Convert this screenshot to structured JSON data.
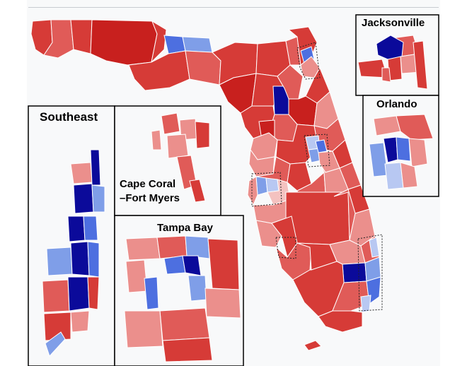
{
  "insets": {
    "jacksonville": "Jacksonville",
    "orlando": "Orlando",
    "southeast": "Southeast",
    "cape_coral_line1": "Cape Coral",
    "cape_coral_line2": "–Fort Myers",
    "tampa_bay": "Tampa Bay"
  },
  "colors": {
    "dark_red": "#c8201e",
    "red": "#d63b37",
    "mid_red": "#e05b58",
    "light_red": "#eb8f8c",
    "pale_red": "#f4c2c0",
    "dark_blue": "#0b0a9a",
    "blue": "#4d6fe0",
    "light_blue": "#7f9ee8",
    "pale_blue": "#b8c8f2"
  }
}
